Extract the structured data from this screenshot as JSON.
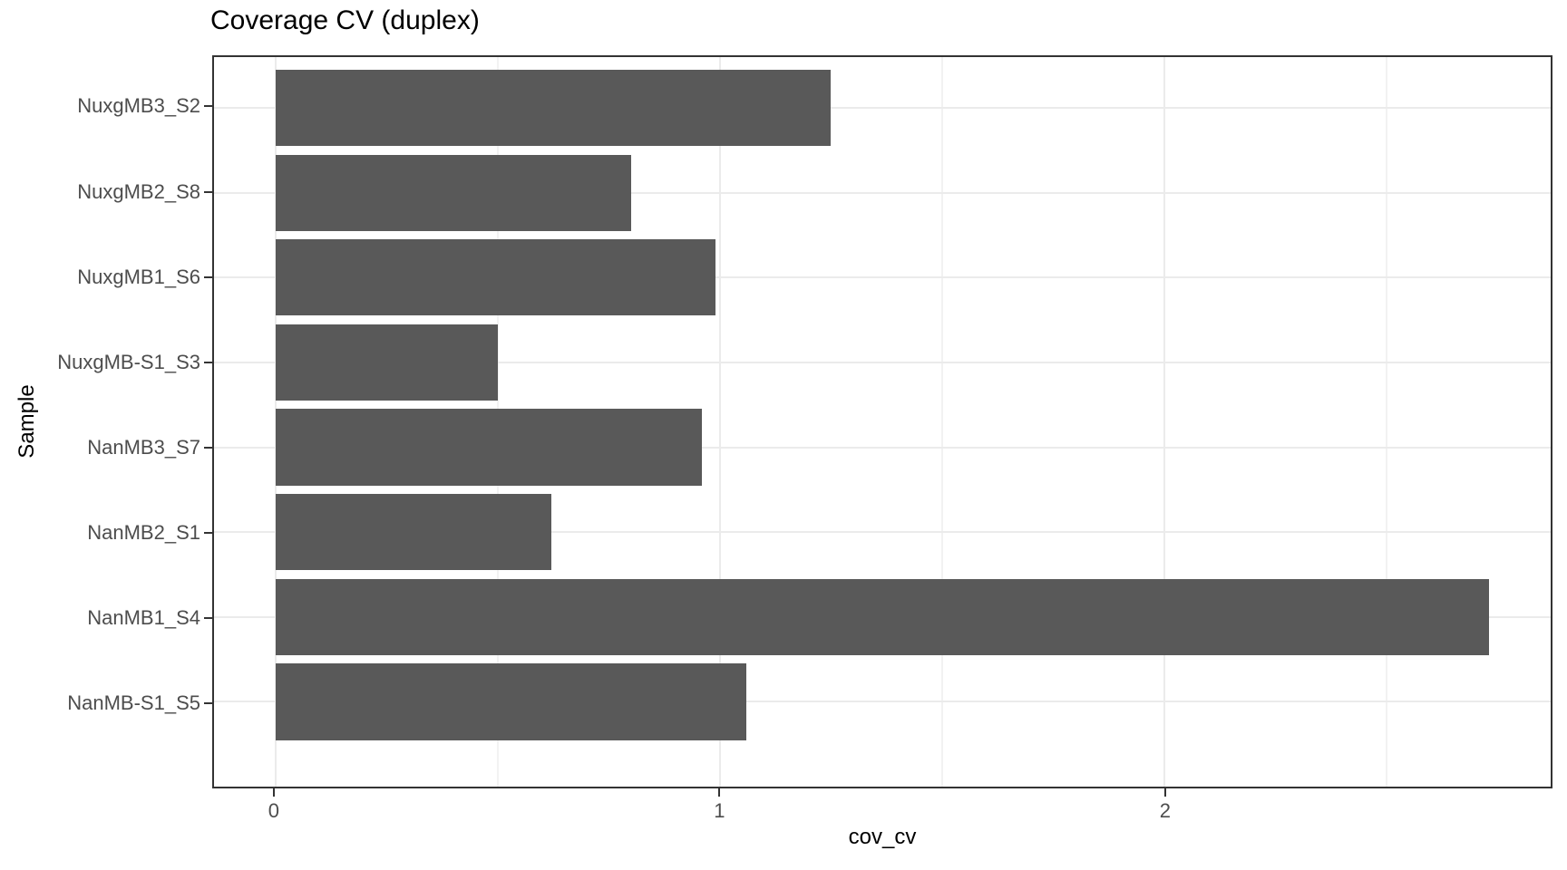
{
  "chart_data": {
    "type": "bar",
    "orientation": "horizontal",
    "title": "Coverage CV (duplex)",
    "xlabel": "cov_cv",
    "ylabel": "Sample",
    "categories": [
      "NuxgMB3_S2",
      "NuxgMB2_S8",
      "NuxgMB1_S6",
      "NuxgMB-S1_S3",
      "NanMB3_S7",
      "NanMB2_S1",
      "NanMB1_S4",
      "NanMB-S1_S5"
    ],
    "values": [
      1.25,
      0.8,
      0.99,
      0.5,
      0.96,
      0.62,
      2.73,
      1.06
    ],
    "x_ticks": [
      0,
      1,
      2
    ],
    "x_minor_ticks": [
      0.5,
      1.5,
      2.5
    ],
    "xlim": [
      -0.138,
      2.869
    ],
    "grid": true,
    "legend": false,
    "colors": {
      "bar_fill": "#595959",
      "panel_border": "#333333",
      "grid_major": "#ebebeb",
      "grid_minor": "#f2f2f2",
      "tick_label": "#4d4d4d",
      "title": "#000000",
      "background": "#ffffff"
    }
  }
}
